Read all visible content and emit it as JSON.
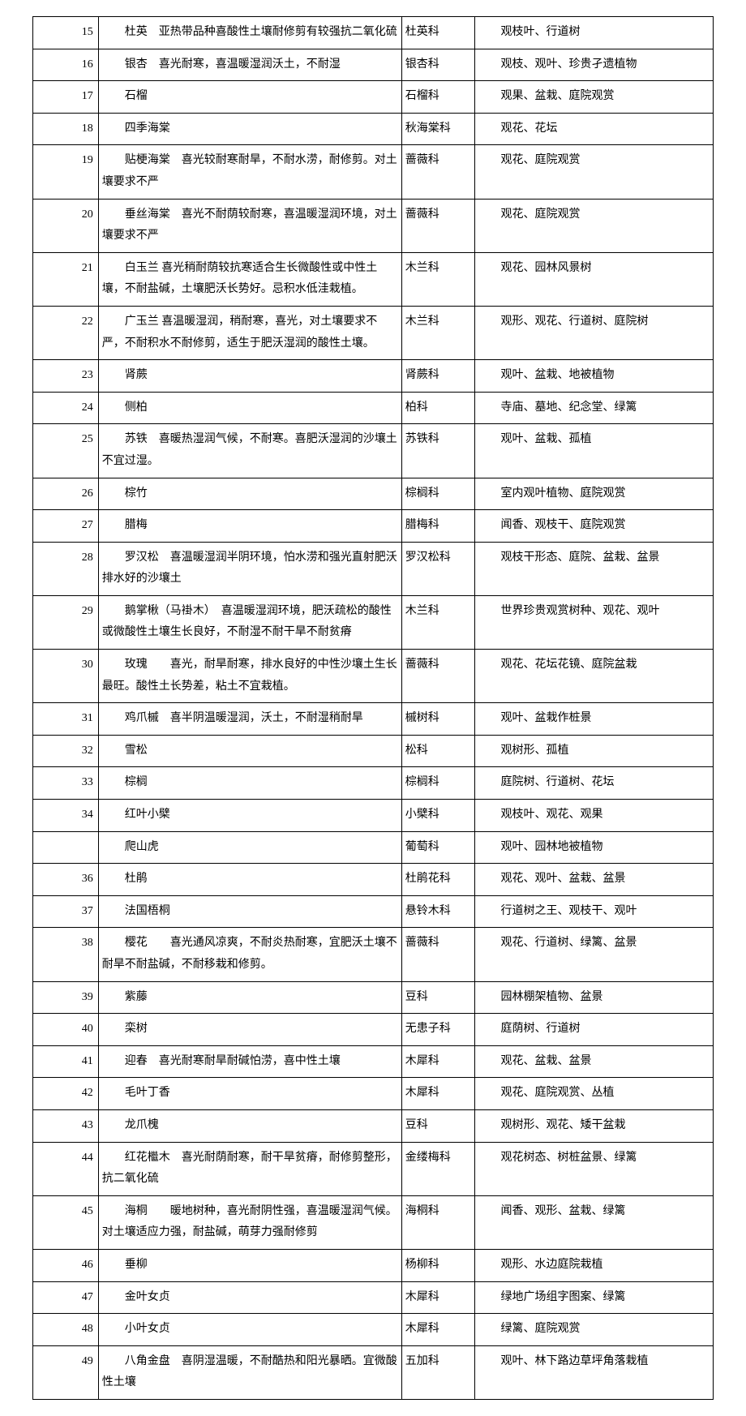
{
  "rows": [
    {
      "num": "15",
      "desc": "杜英　亚热带品种喜酸性土壤耐修剪有较强抗二氧化硫",
      "family": "杜英科",
      "use": "观枝叶、行道树"
    },
    {
      "num": "16",
      "desc": "银杏　喜光耐寒，喜温暖湿润沃土，不耐湿",
      "family": "银杏科",
      "use": "观枝、观叶、珍贵孑遗植物"
    },
    {
      "num": "17",
      "desc": "石榴",
      "family": "石榴科",
      "use": "观果、盆栽、庭院观赏"
    },
    {
      "num": "18",
      "desc": "四季海棠",
      "family": "秋海棠科",
      "use": "观花、花坛"
    },
    {
      "num": "19",
      "desc": "贴梗海棠　喜光较耐寒耐旱，不耐水涝，耐修剪。对土壤要求不严",
      "family": "蔷薇科",
      "use": "观花、庭院观赏"
    },
    {
      "num": "20",
      "desc": "垂丝海棠　喜光不耐荫较耐寒，喜温暖湿润环境，对土壤要求不严",
      "family": "蔷薇科",
      "use": "观花、庭院观赏"
    },
    {
      "num": "21",
      "desc": "白玉兰 喜光稍耐荫较抗寒适合生长微酸性或中性土壤，不耐盐碱，土壤肥沃长势好。忌积水低洼栽植。",
      "family": "木兰科",
      "use": "观花、园林风景树"
    },
    {
      "num": "22",
      "desc": "广玉兰 喜温暖湿润，稍耐寒，喜光，对土壤要求不严，不耐积水不耐修剪，适生于肥沃湿润的酸性土壤。",
      "family": "木兰科",
      "use": "观形、观花、行道树、庭院树"
    },
    {
      "num": "23",
      "desc": "肾蕨",
      "family": "肾蕨科",
      "use": "观叶、盆栽、地被植物"
    },
    {
      "num": "24",
      "desc": "侧柏",
      "family": "柏科",
      "use": "寺庙、墓地、纪念堂、绿篱"
    },
    {
      "num": "25",
      "desc": "苏铁　喜暖热湿润气候，不耐寒。喜肥沃湿润的沙壤土不宜过湿。",
      "family": "苏铁科",
      "use": "观叶、盆栽、孤植"
    },
    {
      "num": "26",
      "desc": "棕竹",
      "family": "棕榈科",
      "use": "室内观叶植物、庭院观赏"
    },
    {
      "num": "27",
      "desc": "腊梅",
      "family": "腊梅科",
      "use": "闻香、观枝干、庭院观赏"
    },
    {
      "num": "28",
      "desc": "罗汉松　喜温暖湿润半阴环境，怕水涝和强光直射肥沃排水好的沙壤土",
      "family": "罗汉松科",
      "use": "观枝干形态、庭院、盆栽、盆景"
    },
    {
      "num": "29",
      "desc": "鹅掌楸（马褂木）　喜温暖湿润环境，肥沃疏松的酸性或微酸性土壤生长良好，不耐湿不耐干旱不耐贫瘠",
      "family": "木兰科",
      "use": "世界珍贵观赏树种、观花、观叶"
    },
    {
      "num": "30",
      "desc": "玫瑰　　喜光，耐旱耐寒，排水良好的中性沙壤土生长最旺。酸性土长势差，粘土不宜栽植。",
      "family": "蔷薇科",
      "use": "观花、花坛花镜、庭院盆栽"
    },
    {
      "num": "31",
      "desc": "鸡爪槭　喜半阴温暖湿润，沃土，不耐湿稍耐旱",
      "family": "槭树科",
      "use": "观叶、盆栽作桩景"
    },
    {
      "num": "32",
      "desc": "雪松",
      "family": "松科",
      "use": "观树形、孤植"
    },
    {
      "num": "33",
      "desc": "棕榈",
      "family": "棕榈科",
      "use": "庭院树、行道树、花坛"
    },
    {
      "num": "34",
      "desc": "红叶小檗",
      "family": "小檗科",
      "use": "观枝叶、观花、观果"
    },
    {
      "num": "",
      "desc": "爬山虎",
      "family": "葡萄科",
      "use": "观叶、园林地被植物"
    },
    {
      "num": "36",
      "desc": "杜鹃",
      "family": "杜鹃花科",
      "use": "观花、观叶、盆栽、盆景"
    },
    {
      "num": "37",
      "desc": "法国梧桐",
      "family": "悬铃木科",
      "use": "行道树之王、观枝干、观叶"
    },
    {
      "num": "38",
      "desc": "樱花　　喜光通风凉爽，不耐炎热耐寒，宜肥沃土壤不耐旱不耐盐碱，不耐移栽和修剪。",
      "family": "蔷薇科",
      "use": "观花、行道树、绿篱、盆景"
    },
    {
      "num": "39",
      "desc": "紫藤",
      "family": "豆科",
      "use": "园林棚架植物、盆景"
    },
    {
      "num": "40",
      "desc": "栾树",
      "family": "无患子科",
      "use": "庭荫树、行道树"
    },
    {
      "num": "41",
      "desc": "迎春　喜光耐寒耐旱耐碱怕涝，喜中性土壤",
      "family": "木犀科",
      "use": "观花、盆栽、盆景"
    },
    {
      "num": "42",
      "desc": "毛叶丁香",
      "family": "木犀科",
      "use": "观花、庭院观赏、丛植"
    },
    {
      "num": "43",
      "desc": "龙爪槐",
      "family": "豆科",
      "use": "观树形、观花、矮干盆栽"
    },
    {
      "num": "44",
      "desc": "红花檵木　喜光耐荫耐寒，耐干旱贫瘠，耐修剪整形，抗二氧化硫",
      "family": "金缕梅科",
      "use": "观花树态、树桩盆景、绿篱"
    },
    {
      "num": "45",
      "desc": "海桐　　暖地树种，喜光耐阴性强，喜温暖湿润气候。对土壤适应力强，耐盐碱，萌芽力强耐修剪",
      "family": "海桐科",
      "use": "闻香、观形、盆栽、绿篱"
    },
    {
      "num": "46",
      "desc": "垂柳",
      "family": "杨柳科",
      "use": "观形、水边庭院栽植"
    },
    {
      "num": "47",
      "desc": "金叶女贞",
      "family": "木犀科",
      "use": "绿地广场组字图案、绿篱"
    },
    {
      "num": "48",
      "desc": "小叶女贞",
      "family": "木犀科",
      "use": "绿篱、庭院观赏"
    },
    {
      "num": "49",
      "desc": "八角金盘　喜阴湿温暖，不耐酷热和阳光暴晒。宜微酸性土壤",
      "family": "五加科",
      "use": "观叶、林下路边草坪角落栽植"
    }
  ]
}
